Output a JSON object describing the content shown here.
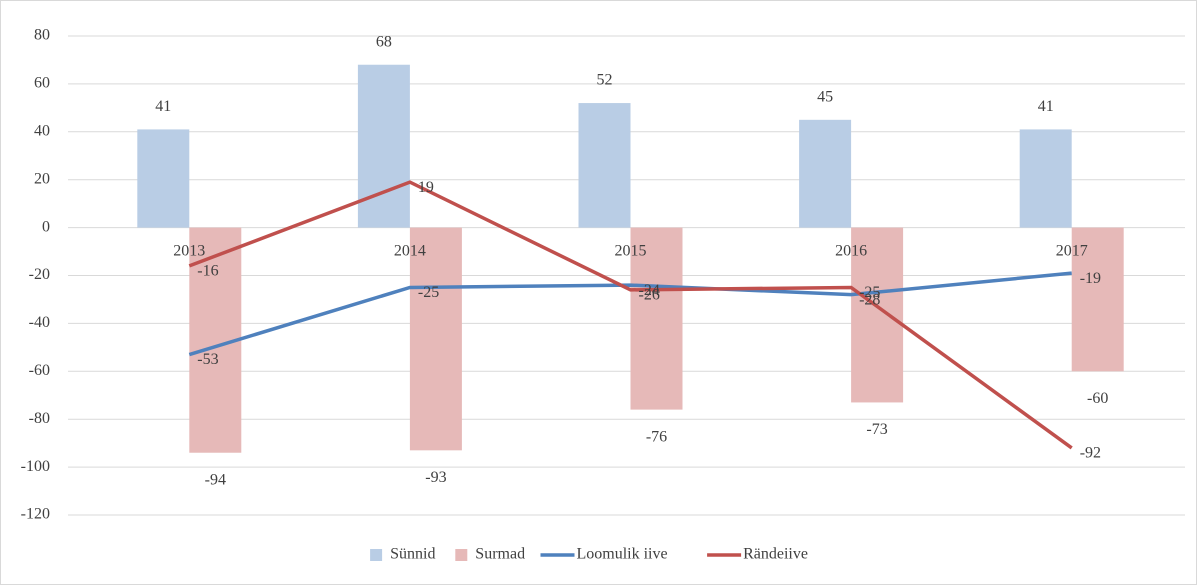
{
  "chart_data": {
    "type": "combo",
    "categories": [
      "2013",
      "2014",
      "2015",
      "2016",
      "2017"
    ],
    "series": [
      {
        "name": "Sünnid",
        "type": "bar",
        "color": "#b9cde5",
        "values": [
          41,
          68,
          52,
          45,
          41
        ]
      },
      {
        "name": "Surmad",
        "type": "bar",
        "color": "#e6b9b8",
        "values": [
          -94,
          -93,
          -76,
          -73,
          -60
        ]
      },
      {
        "name": "Loomulik iive",
        "type": "line",
        "color": "#4f81bd",
        "values": [
          -53,
          -25,
          -24,
          -28,
          -19
        ]
      },
      {
        "name": "Rändeiive",
        "type": "line",
        "color": "#c0504d",
        "values": [
          -16,
          19,
          -26,
          -25,
          -92
        ]
      }
    ],
    "ylim": [
      -120,
      80
    ],
    "yticks": [
      -120,
      -100,
      -80,
      -60,
      -40,
      -20,
      0,
      20,
      40,
      60,
      80
    ],
    "grid": true,
    "legend": "bottom"
  }
}
